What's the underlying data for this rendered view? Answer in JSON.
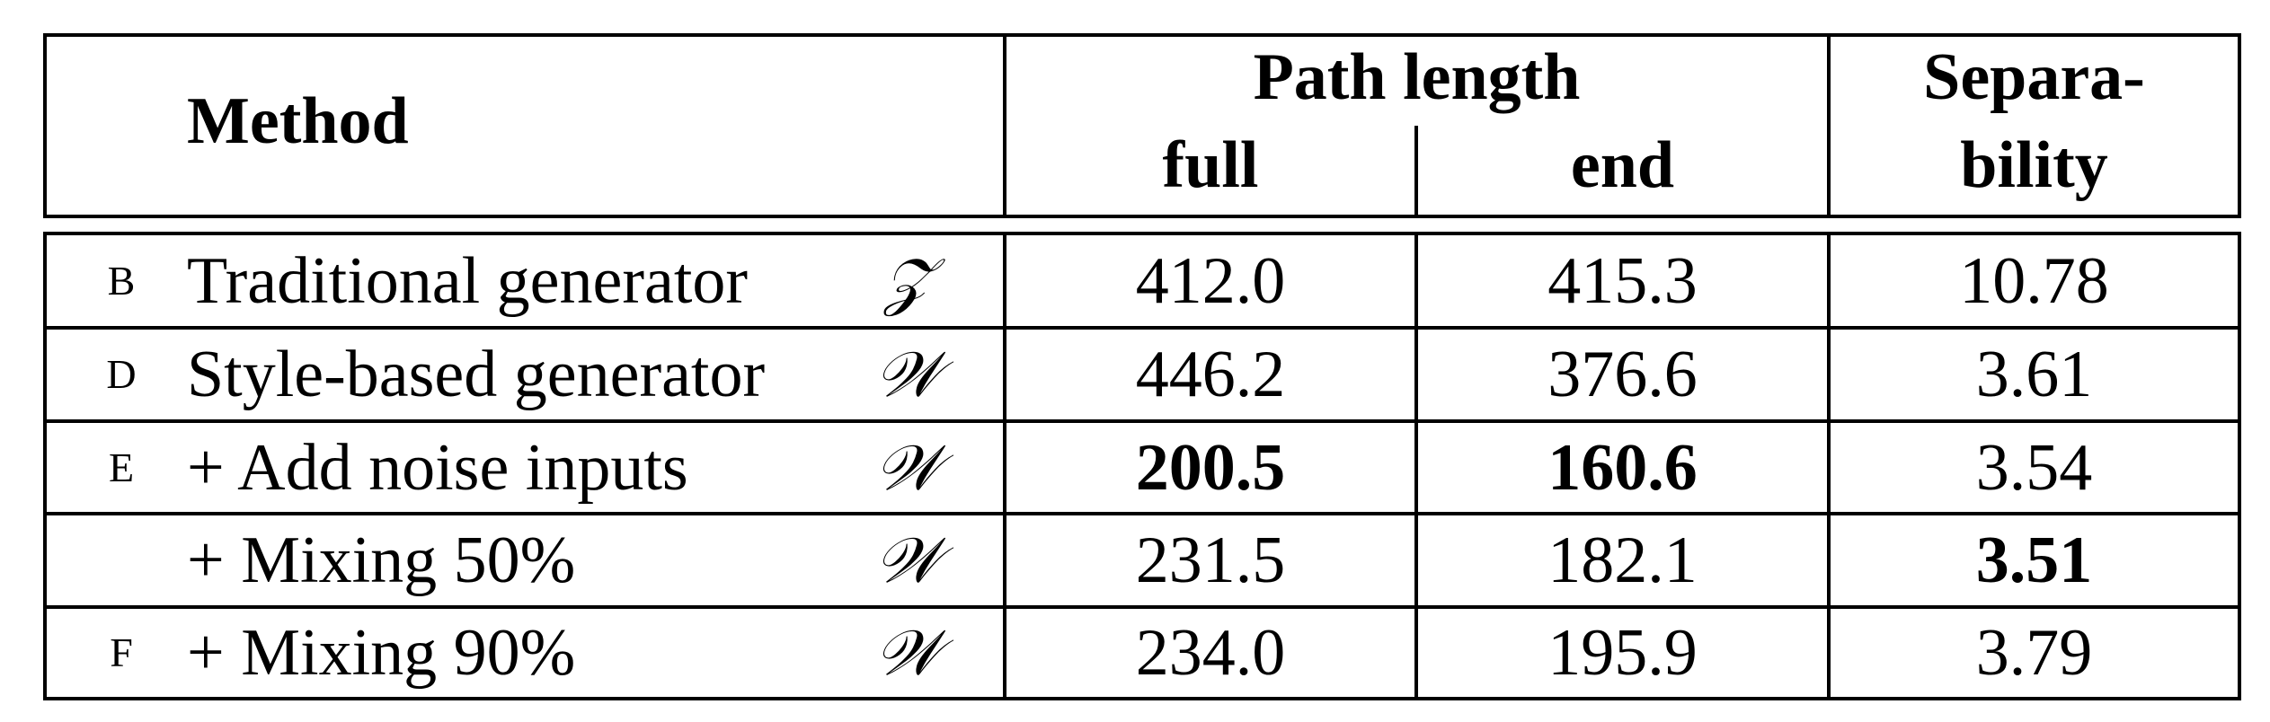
{
  "table": {
    "header": {
      "method": "Method",
      "path_length": "Path length",
      "full": "full",
      "end": "end",
      "separability_line1": "Separa-",
      "separability_line2": "bility"
    },
    "rows": [
      {
        "config": "B",
        "method": "Traditional generator",
        "space": "𝒵",
        "full": "412.0",
        "end": "415.3",
        "separability": "10.78"
      },
      {
        "config": "D",
        "method": "Style-based generator",
        "space": "𝒲",
        "full": "446.2",
        "end": "376.6",
        "separability": "3.61"
      },
      {
        "config": "E",
        "method": "+ Add noise inputs",
        "space": "𝒲",
        "full": "200.5",
        "end": "160.6",
        "separability": "3.54"
      },
      {
        "config": "",
        "method": "+ Mixing 50%",
        "space": "𝒲",
        "full": "231.5",
        "end": "182.1",
        "separability": "3.51"
      },
      {
        "config": "F",
        "method": "+ Mixing 90%",
        "space": "𝒲",
        "full": "234.0",
        "end": "195.9",
        "separability": "3.79"
      }
    ]
  }
}
